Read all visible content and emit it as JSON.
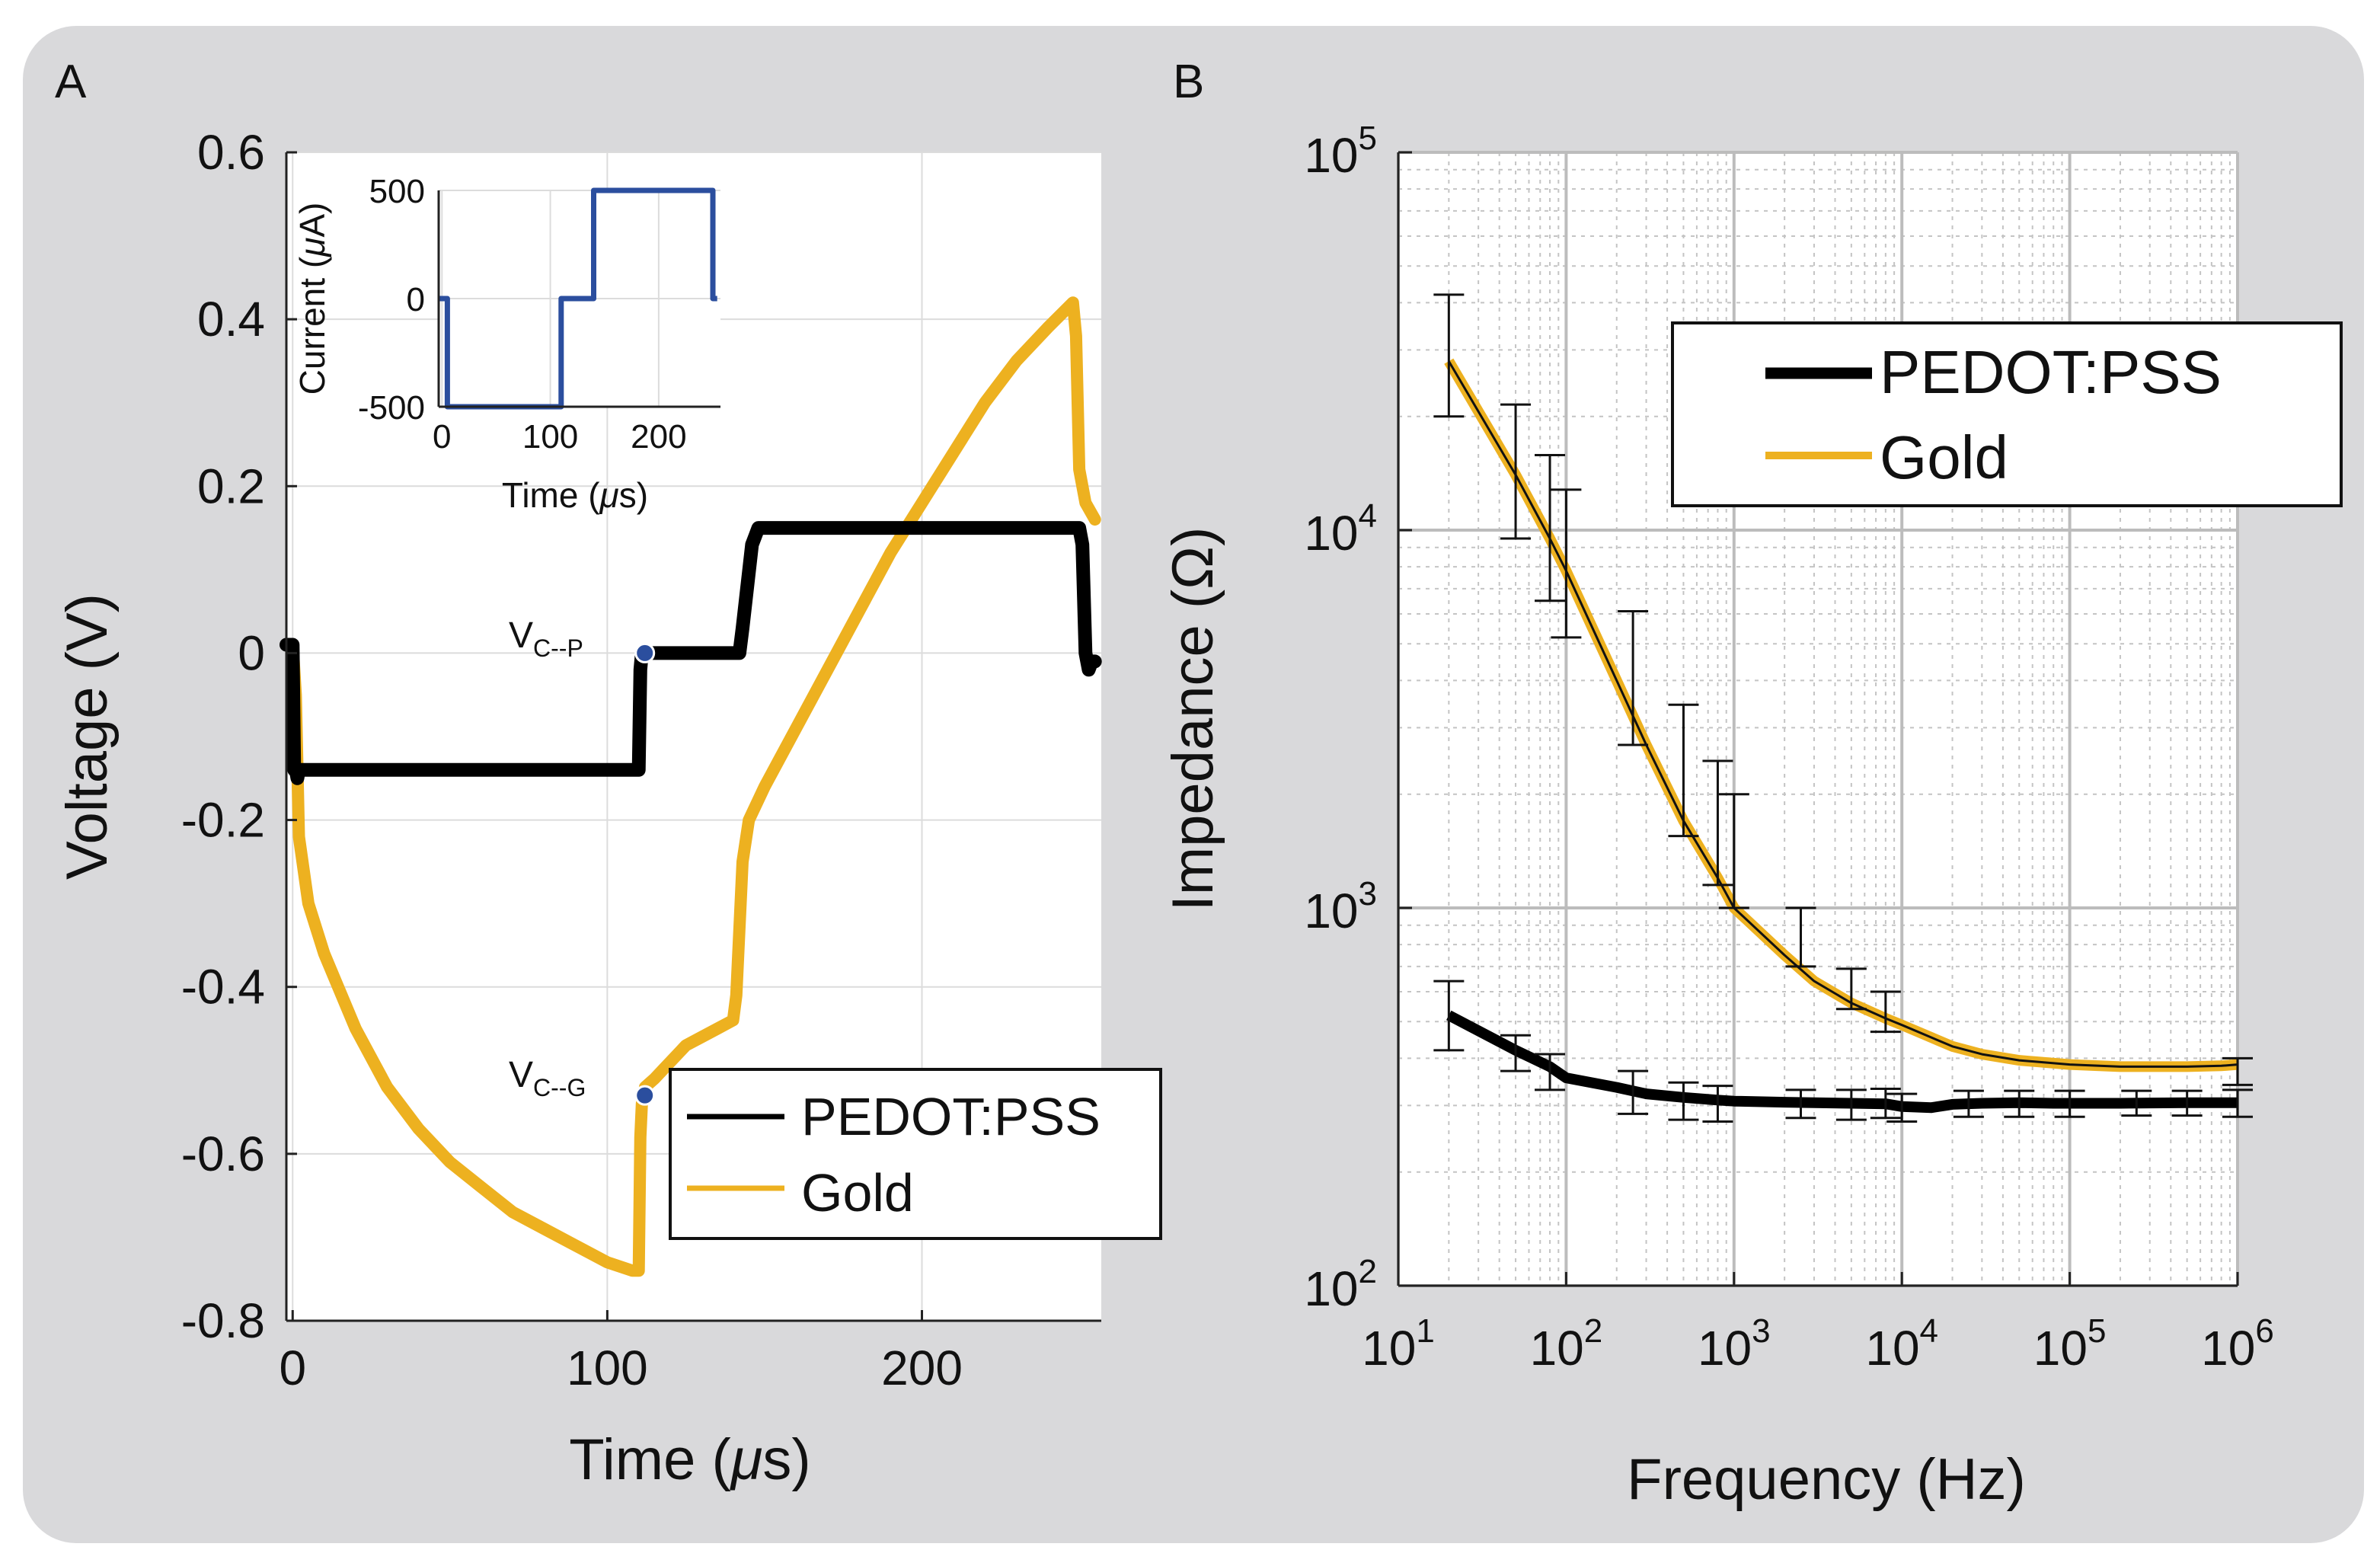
{
  "chart_data": [
    {
      "panel": "A",
      "type": "line",
      "xlabel_prefix": "Time (",
      "xlabel_mu": "μ",
      "xlabel_suffix": "s)",
      "ylabel": "Voltage (V)",
      "xlim": [
        -2,
        257
      ],
      "ylim": [
        -0.8,
        0.6
      ],
      "xticks": [
        0,
        100,
        200
      ],
      "yticks": [
        0.6,
        0.4,
        0.2,
        0,
        -0.2,
        -0.4,
        -0.6,
        -0.8
      ],
      "ytick_labels": [
        "0.6",
        "0.4",
        "0.2",
        "0",
        "-0.2",
        "-0.4",
        "-0.6",
        "-0.8"
      ],
      "grid": true,
      "series": [
        {
          "name": "PEDOT:PSS",
          "color": "#000000",
          "x": [
            -2,
            0,
            0.5,
            1,
            1.5,
            2,
            110,
            110.5,
            111,
            142,
            143,
            146,
            147,
            148,
            150,
            250,
            251,
            252,
            253,
            254,
            255
          ],
          "y": [
            0.01,
            0.01,
            -0.14,
            -0.14,
            -0.15,
            -0.14,
            -0.14,
            -0.02,
            0.0,
            0.0,
            0.03,
            0.13,
            0.14,
            0.15,
            0.15,
            0.15,
            0.13,
            0.0,
            -0.02,
            -0.01,
            -0.01
          ]
        },
        {
          "name": "Gold",
          "color": "#EDB120",
          "x": [
            -2,
            0,
            1,
            2,
            5,
            10,
            20,
            30,
            40,
            50,
            60,
            70,
            80,
            90,
            100,
            108,
            110,
            110.5,
            111,
            112,
            115,
            120,
            125,
            130,
            135,
            140,
            141,
            142,
            143,
            145,
            150,
            160,
            170,
            180,
            190,
            200,
            210,
            220,
            230,
            240,
            248,
            249,
            250,
            251,
            252,
            255
          ],
          "y": [
            0.01,
            0.01,
            -0.05,
            -0.22,
            -0.3,
            -0.36,
            -0.45,
            -0.52,
            -0.57,
            -0.61,
            -0.64,
            -0.67,
            -0.69,
            -0.71,
            -0.73,
            -0.74,
            -0.74,
            -0.58,
            -0.54,
            -0.52,
            -0.51,
            -0.49,
            -0.47,
            -0.46,
            -0.45,
            -0.44,
            -0.41,
            -0.33,
            -0.25,
            -0.2,
            -0.16,
            -0.09,
            -0.02,
            0.05,
            0.12,
            0.18,
            0.24,
            0.3,
            0.35,
            0.39,
            0.42,
            0.38,
            0.22,
            0.2,
            0.18,
            0.16
          ]
        }
      ],
      "annotations": [
        {
          "base": "V",
          "sub": "C--P",
          "x": 110,
          "y": 0.0,
          "dot_color": "#2B4E9E"
        },
        {
          "base": "V",
          "sub": "C--G",
          "x": 110,
          "y": -0.53,
          "dot_color": "#2B4E9E"
        }
      ],
      "legend": {
        "position": "bottom-right",
        "entries": [
          "PEDOT:PSS",
          "Gold"
        ]
      },
      "inset": {
        "type": "line",
        "xlabel_prefix": "Time (",
        "xlabel_mu": "μ",
        "xlabel_suffix": "s)",
        "ylabel_prefix": "Current (",
        "ylabel_mu": "μ",
        "ylabel_suffix": "A)",
        "xlim": [
          -3,
          257
        ],
        "ylim": [
          -500,
          500
        ],
        "xticks": [
          0,
          100,
          200
        ],
        "yticks": [
          500,
          0,
          -500
        ],
        "series": [
          {
            "name": "Current",
            "color": "#2B4E9E",
            "x": [
              -3,
              5,
              5,
              110,
              110,
              114,
              114,
              140,
              140,
              250,
              250,
              254
            ],
            "y": [
              0,
              0,
              -500,
              -500,
              0,
              0,
              0,
              0,
              500,
              500,
              0,
              0
            ]
          }
        ]
      }
    },
    {
      "panel": "B",
      "type": "line",
      "xscale": "log",
      "yscale": "log",
      "xlabel": "Frequency (Hz)",
      "ylabel": "Impedance (Ω)",
      "xlim": [
        10,
        1000000
      ],
      "ylim": [
        100,
        100000
      ],
      "xtick_exponents": [
        "1",
        "2",
        "3",
        "4",
        "5",
        "6"
      ],
      "ytick_exponents": [
        "2",
        "3",
        "4",
        "5"
      ],
      "tick_base": "10",
      "grid": "major and minor",
      "series": [
        {
          "name": "PEDOT:PSS",
          "color": "#000000",
          "x": [
            20,
            50,
            80,
            100,
            200,
            300,
            500,
            800,
            1000,
            2000,
            3000,
            5000,
            8000,
            10000,
            15000,
            20000,
            30000,
            50000,
            80000,
            100000,
            200000,
            500000,
            1000000
          ],
          "y": [
            520,
            420,
            380,
            355,
            335,
            322,
            315,
            310,
            308,
            306,
            305,
            304,
            303,
            298,
            296,
            302,
            304,
            305,
            304,
            304,
            304,
            305,
            305
          ]
        },
        {
          "name": "Gold",
          "color": "#EDB120",
          "x": [
            20,
            50,
            80,
            100,
            200,
            300,
            500,
            800,
            1000,
            2000,
            3000,
            5000,
            8000,
            10000,
            20000,
            30000,
            50000,
            100000,
            200000,
            500000,
            800000,
            1000000
          ],
          "y": [
            28000,
            14000,
            9500,
            7800,
            4000,
            2700,
            1700,
            1200,
            1000,
            750,
            640,
            560,
            510,
            490,
            430,
            410,
            395,
            385,
            380,
            380,
            382,
            385
          ]
        }
      ],
      "error_bars": [
        {
          "series": "Gold",
          "x": 20,
          "low": 20000,
          "high": 42000
        },
        {
          "series": "Gold",
          "x": 50,
          "low": 9500,
          "high": 21500
        },
        {
          "series": "Gold",
          "x": 80,
          "low": 6500,
          "high": 15800
        },
        {
          "series": "Gold",
          "x": 100,
          "low": 5200,
          "high": 12800
        },
        {
          "series": "Gold",
          "x": 250,
          "low": 2700,
          "high": 6100
        },
        {
          "series": "Gold",
          "x": 500,
          "low": 1550,
          "high": 3450
        },
        {
          "series": "Gold",
          "x": 800,
          "low": 1150,
          "high": 2450
        },
        {
          "series": "Gold",
          "x": 1000,
          "low": 1000,
          "high": 2000
        },
        {
          "series": "Gold",
          "x": 2500,
          "low": 700,
          "high": 1000
        },
        {
          "series": "Gold",
          "x": 5000,
          "low": 540,
          "high": 690
        },
        {
          "series": "Gold",
          "x": 8000,
          "low": 470,
          "high": 600
        },
        {
          "series": "PEDOT:PSS",
          "x": 20,
          "low": 420,
          "high": 640
        },
        {
          "series": "PEDOT:PSS",
          "x": 50,
          "low": 370,
          "high": 460
        },
        {
          "series": "PEDOT:PSS",
          "x": 80,
          "low": 330,
          "high": 410
        },
        {
          "series": "PEDOT:PSS",
          "x": 250,
          "low": 285,
          "high": 370
        },
        {
          "series": "PEDOT:PSS",
          "x": 500,
          "low": 275,
          "high": 345
        },
        {
          "series": "PEDOT:PSS",
          "x": 800,
          "low": 272,
          "high": 338
        },
        {
          "series": "PEDOT:PSS",
          "x": 2500,
          "low": 278,
          "high": 330
        },
        {
          "series": "PEDOT:PSS",
          "x": 5000,
          "low": 275,
          "high": 330
        },
        {
          "series": "PEDOT:PSS",
          "x": 8000,
          "low": 278,
          "high": 332
        },
        {
          "series": "PEDOT:PSS",
          "x": 10000,
          "low": 272,
          "high": 322
        },
        {
          "series": "PEDOT:PSS",
          "x": 25000,
          "low": 280,
          "high": 328
        },
        {
          "series": "PEDOT:PSS",
          "x": 50000,
          "low": 280,
          "high": 328
        },
        {
          "series": "PEDOT:PSS",
          "x": 100000,
          "low": 280,
          "high": 328
        },
        {
          "series": "PEDOT:PSS",
          "x": 250000,
          "low": 282,
          "high": 328
        },
        {
          "series": "PEDOT:PSS",
          "x": 500000,
          "low": 282,
          "high": 328
        },
        {
          "series": "PEDOT:PSS",
          "x": 1000000,
          "low": 280,
          "high": 330
        },
        {
          "series": "Gold",
          "x": 1000000,
          "low": 340,
          "high": 400
        }
      ],
      "legend": {
        "position": "top-right",
        "entries": [
          "PEDOT:PSS",
          "Gold"
        ]
      }
    }
  ]
}
